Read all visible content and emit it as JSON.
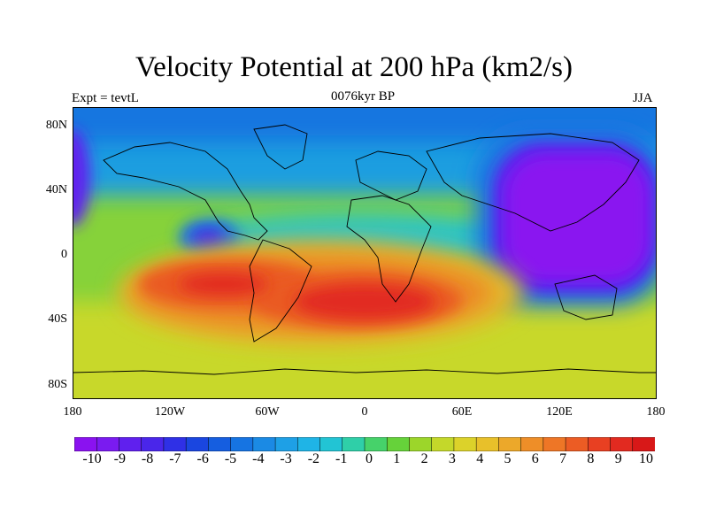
{
  "figure": {
    "title": "Velocity Potential at 200 hPa (km2/s)",
    "left_label": "Expt = tevtL",
    "center_label": "0076kyr BP",
    "right_label": "JJA"
  },
  "axes": {
    "y_ticks": [
      "80N",
      "40N",
      "0",
      "40S",
      "80S"
    ],
    "x_ticks": [
      "180",
      "120W",
      "60W",
      "0",
      "60E",
      "120E",
      "180"
    ]
  },
  "colorbar": {
    "labels": [
      "-10",
      "-9",
      "-8",
      "-7",
      "-6",
      "-5",
      "-4",
      "-3",
      "-2",
      "-1",
      "0",
      "1",
      "2",
      "3",
      "4",
      "5",
      "6",
      "7",
      "8",
      "9",
      "10"
    ],
    "colors": [
      "#8a12f0",
      "#7a1bf0",
      "#6020ee",
      "#4a26ea",
      "#2f30e6",
      "#1a46e0",
      "#155ee0",
      "#1674e2",
      "#1b8ae4",
      "#1ea0e6",
      "#1fb4e6",
      "#22c4d4",
      "#2fcfa8",
      "#46d26a",
      "#66d23a",
      "#9cd62a",
      "#c4d82a",
      "#dcd22a",
      "#e8c02a",
      "#eca82a",
      "#ee8e28",
      "#ee7626",
      "#ec5c24",
      "#e84022",
      "#e22a20",
      "#d81818"
    ]
  },
  "map_data": {
    "type": "filled-contour",
    "projection": "cylindrical-equidistant",
    "lon_range": [
      -180,
      180
    ],
    "lat_range": [
      -90,
      90
    ],
    "levels": [
      -10,
      10
    ],
    "features": [
      {
        "name": "Pacific-Asia negative maximum",
        "lon": 135,
        "lat": 20,
        "value": -10
      },
      {
        "name": "Central America minimum",
        "lon": -95,
        "lat": 10,
        "value": -8
      },
      {
        "name": "South Atlantic positive maximum",
        "lon": -30,
        "lat": -25,
        "value": 10
      },
      {
        "name": "South Pacific positive maximum",
        "lon": -100,
        "lat": -20,
        "value": 9
      }
    ]
  }
}
